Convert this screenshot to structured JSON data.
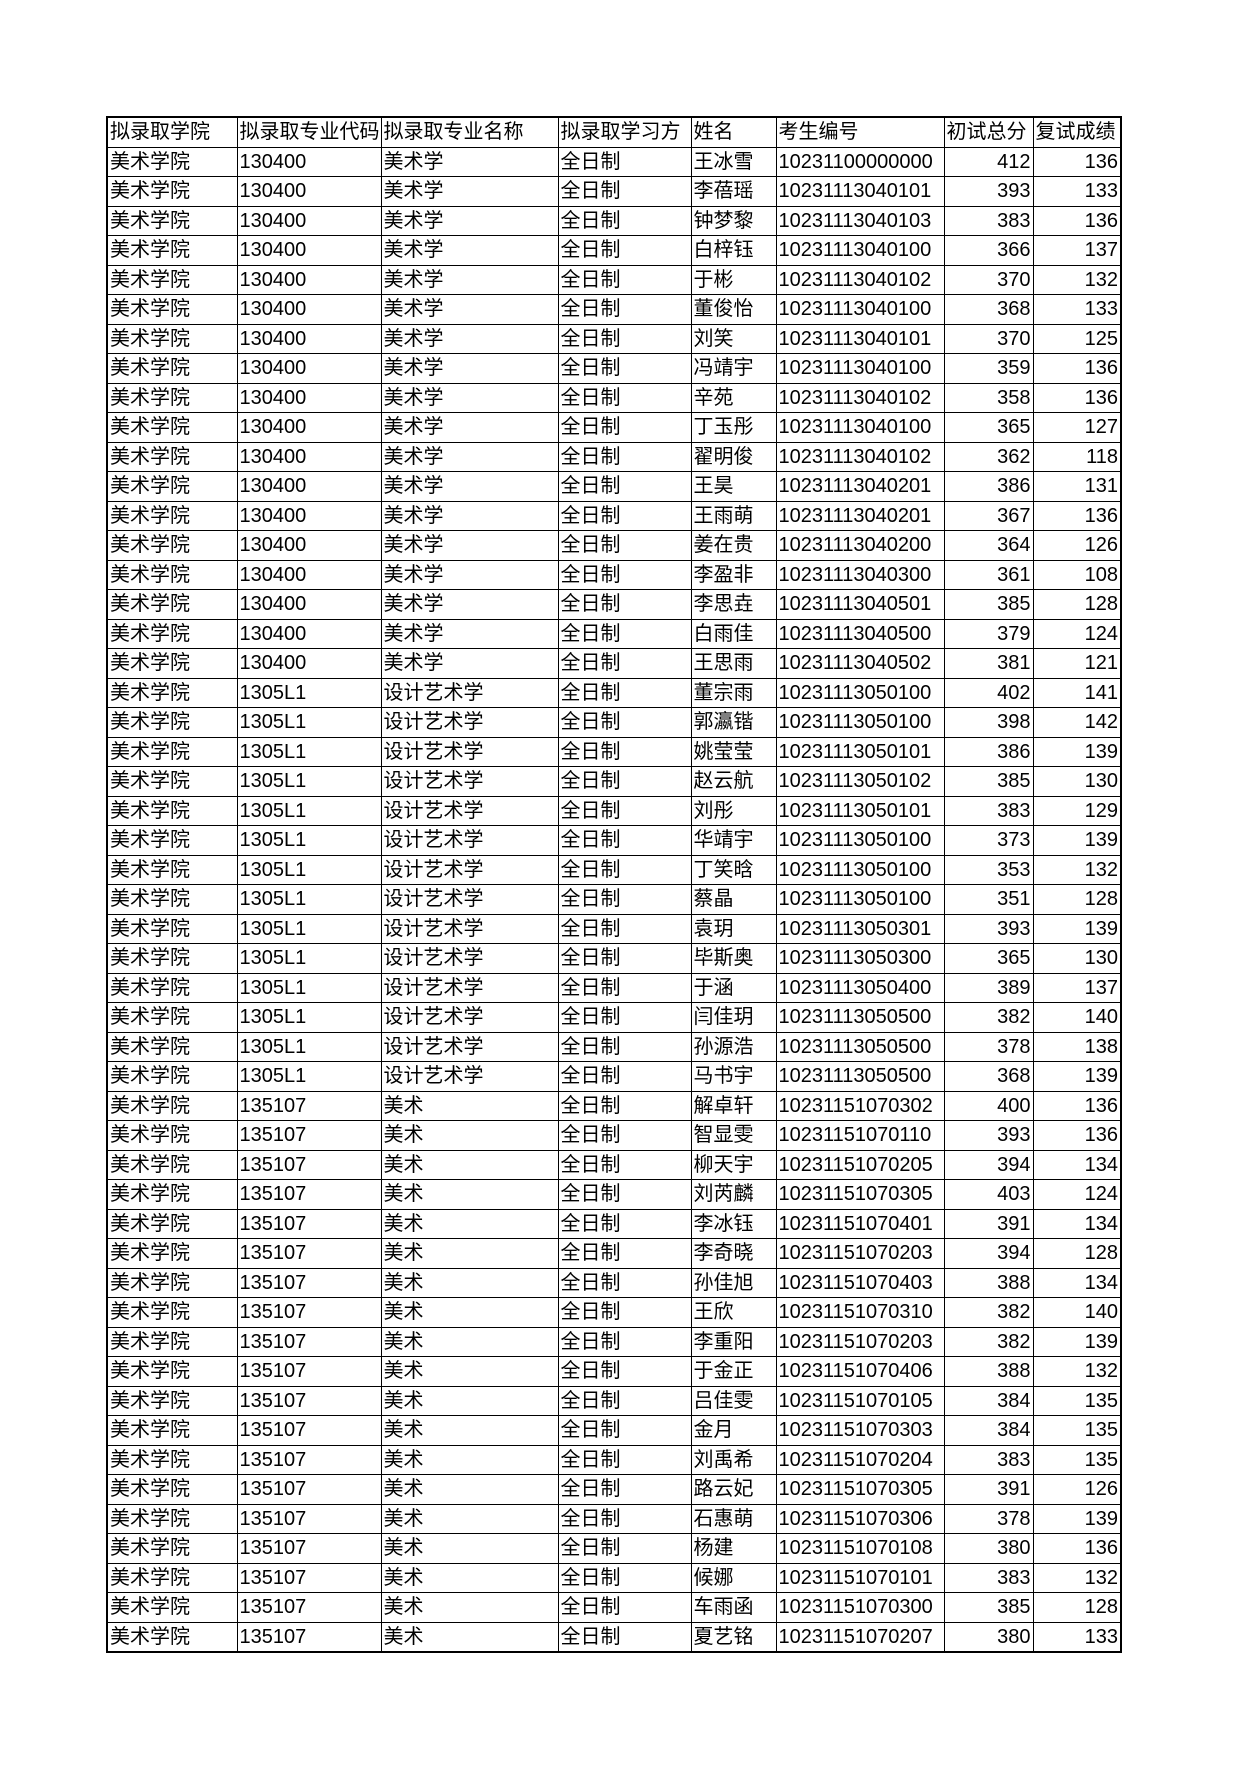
{
  "table": {
    "header": [
      "拟录取学院",
      "拟录取专业代码",
      "拟录取专业名称",
      "拟录取学习方",
      "姓名",
      "考生编号",
      "初试总分",
      "复试成绩"
    ],
    "rows": [
      [
        "美术学院",
        "130400",
        "美术学",
        "全日制",
        "王冰雪",
        "10231100000000",
        412,
        136
      ],
      [
        "美术学院",
        "130400",
        "美术学",
        "全日制",
        "李蓓瑶",
        "10231113040101",
        393,
        133
      ],
      [
        "美术学院",
        "130400",
        "美术学",
        "全日制",
        "钟梦黎",
        "10231113040103",
        383,
        136
      ],
      [
        "美术学院",
        "130400",
        "美术学",
        "全日制",
        "白梓钰",
        "10231113040100",
        366,
        137
      ],
      [
        "美术学院",
        "130400",
        "美术学",
        "全日制",
        "于彬",
        "10231113040102",
        370,
        132
      ],
      [
        "美术学院",
        "130400",
        "美术学",
        "全日制",
        "董俊怡",
        "10231113040100",
        368,
        133
      ],
      [
        "美术学院",
        "130400",
        "美术学",
        "全日制",
        "刘笑",
        "10231113040101",
        370,
        125
      ],
      [
        "美术学院",
        "130400",
        "美术学",
        "全日制",
        "冯靖宇",
        "10231113040100",
        359,
        136
      ],
      [
        "美术学院",
        "130400",
        "美术学",
        "全日制",
        "辛苑",
        "10231113040102",
        358,
        136
      ],
      [
        "美术学院",
        "130400",
        "美术学",
        "全日制",
        "丁玉彤",
        "10231113040100",
        365,
        127
      ],
      [
        "美术学院",
        "130400",
        "美术学",
        "全日制",
        "翟明俊",
        "10231113040102",
        362,
        118
      ],
      [
        "美术学院",
        "130400",
        "美术学",
        "全日制",
        "王昊",
        "10231113040201",
        386,
        131
      ],
      [
        "美术学院",
        "130400",
        "美术学",
        "全日制",
        "王雨萌",
        "10231113040201",
        367,
        136
      ],
      [
        "美术学院",
        "130400",
        "美术学",
        "全日制",
        "姜在贵",
        "10231113040200",
        364,
        126
      ],
      [
        "美术学院",
        "130400",
        "美术学",
        "全日制",
        "李盈非",
        "10231113040300",
        361,
        108
      ],
      [
        "美术学院",
        "130400",
        "美术学",
        "全日制",
        "李思垚",
        "10231113040501",
        385,
        128
      ],
      [
        "美术学院",
        "130400",
        "美术学",
        "全日制",
        "白雨佳",
        "10231113040500",
        379,
        124
      ],
      [
        "美术学院",
        "130400",
        "美术学",
        "全日制",
        "王思雨",
        "10231113040502",
        381,
        121
      ],
      [
        "美术学院",
        "1305L1",
        "设计艺术学",
        "全日制",
        "董宗雨",
        "10231113050100",
        402,
        141
      ],
      [
        "美术学院",
        "1305L1",
        "设计艺术学",
        "全日制",
        "郭瀛锴",
        "10231113050100",
        398,
        142
      ],
      [
        "美术学院",
        "1305L1",
        "设计艺术学",
        "全日制",
        "姚莹莹",
        "10231113050101",
        386,
        139
      ],
      [
        "美术学院",
        "1305L1",
        "设计艺术学",
        "全日制",
        "赵云航",
        "10231113050102",
        385,
        130
      ],
      [
        "美术学院",
        "1305L1",
        "设计艺术学",
        "全日制",
        "刘彤",
        "10231113050101",
        383,
        129
      ],
      [
        "美术学院",
        "1305L1",
        "设计艺术学",
        "全日制",
        "华靖宇",
        "10231113050100",
        373,
        139
      ],
      [
        "美术学院",
        "1305L1",
        "设计艺术学",
        "全日制",
        "丁笑晗",
        "10231113050100",
        353,
        132
      ],
      [
        "美术学院",
        "1305L1",
        "设计艺术学",
        "全日制",
        "蔡晶",
        "10231113050100",
        351,
        128
      ],
      [
        "美术学院",
        "1305L1",
        "设计艺术学",
        "全日制",
        "袁玥",
        "10231113050301",
        393,
        139
      ],
      [
        "美术学院",
        "1305L1",
        "设计艺术学",
        "全日制",
        "毕斯奥",
        "10231113050300",
        365,
        130
      ],
      [
        "美术学院",
        "1305L1",
        "设计艺术学",
        "全日制",
        "于涵",
        "10231113050400",
        389,
        137
      ],
      [
        "美术学院",
        "1305L1",
        "设计艺术学",
        "全日制",
        "闫佳玥",
        "10231113050500",
        382,
        140
      ],
      [
        "美术学院",
        "1305L1",
        "设计艺术学",
        "全日制",
        "孙源浩",
        "10231113050500",
        378,
        138
      ],
      [
        "美术学院",
        "1305L1",
        "设计艺术学",
        "全日制",
        "马书宇",
        "10231113050500",
        368,
        139
      ],
      [
        "美术学院",
        "135107",
        "美术",
        "全日制",
        "解卓轩",
        "10231151070302",
        400,
        136
      ],
      [
        "美术学院",
        "135107",
        "美术",
        "全日制",
        "智显雯",
        "10231151070110",
        393,
        136
      ],
      [
        "美术学院",
        "135107",
        "美术",
        "全日制",
        "柳天宇",
        "10231151070205",
        394,
        134
      ],
      [
        "美术学院",
        "135107",
        "美术",
        "全日制",
        "刘芮麟",
        "10231151070305",
        403,
        124
      ],
      [
        "美术学院",
        "135107",
        "美术",
        "全日制",
        "李冰钰",
        "10231151070401",
        391,
        134
      ],
      [
        "美术学院",
        "135107",
        "美术",
        "全日制",
        "李奇晓",
        "10231151070203",
        394,
        128
      ],
      [
        "美术学院",
        "135107",
        "美术",
        "全日制",
        "孙佳旭",
        "10231151070403",
        388,
        134
      ],
      [
        "美术学院",
        "135107",
        "美术",
        "全日制",
        "王欣",
        "10231151070310",
        382,
        140
      ],
      [
        "美术学院",
        "135107",
        "美术",
        "全日制",
        "李重阳",
        "10231151070203",
        382,
        139
      ],
      [
        "美术学院",
        "135107",
        "美术",
        "全日制",
        "于金正",
        "10231151070406",
        388,
        132
      ],
      [
        "美术学院",
        "135107",
        "美术",
        "全日制",
        "吕佳雯",
        "10231151070105",
        384,
        135
      ],
      [
        "美术学院",
        "135107",
        "美术",
        "全日制",
        "金月",
        "10231151070303",
        384,
        135
      ],
      [
        "美术学院",
        "135107",
        "美术",
        "全日制",
        "刘禹希",
        "10231151070204",
        383,
        135
      ],
      [
        "美术学院",
        "135107",
        "美术",
        "全日制",
        "路云妃",
        "10231151070305",
        391,
        126
      ],
      [
        "美术学院",
        "135107",
        "美术",
        "全日制",
        "石惠萌",
        "10231151070306",
        378,
        139
      ],
      [
        "美术学院",
        "135107",
        "美术",
        "全日制",
        "杨建",
        "10231151070108",
        380,
        136
      ],
      [
        "美术学院",
        "135107",
        "美术",
        "全日制",
        "候娜",
        "10231151070101",
        383,
        132
      ],
      [
        "美术学院",
        "135107",
        "美术",
        "全日制",
        "车雨函",
        "10231151070300",
        385,
        128
      ],
      [
        "美术学院",
        "135107",
        "美术",
        "全日制",
        "夏艺铭",
        "10231151070207",
        380,
        133
      ]
    ]
  }
}
